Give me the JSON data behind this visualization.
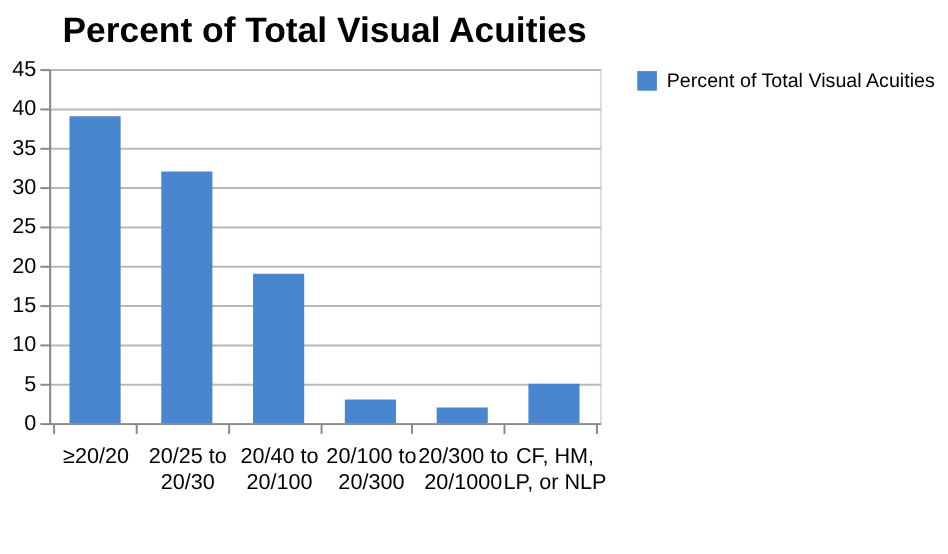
{
  "chart_data": {
    "type": "bar",
    "title": "Percent of Total Visual Acuities",
    "categories": [
      "≥20/20",
      "20/25 to 20/30",
      "20/40 to 20/100",
      "20/100 to 20/300",
      "20/300 to 20/1000",
      "CF, HM, LP, or NLP"
    ],
    "series": [
      {
        "name": "Percent of Total Visual Acuities",
        "color": "#4a86cf",
        "values": [
          39,
          32,
          19,
          3,
          2,
          5
        ]
      }
    ],
    "ylim": [
      0,
      45
    ],
    "yticks": [
      0,
      5,
      10,
      15,
      20,
      25,
      30,
      35,
      40,
      45
    ],
    "grid": "y",
    "legend": "right"
  }
}
